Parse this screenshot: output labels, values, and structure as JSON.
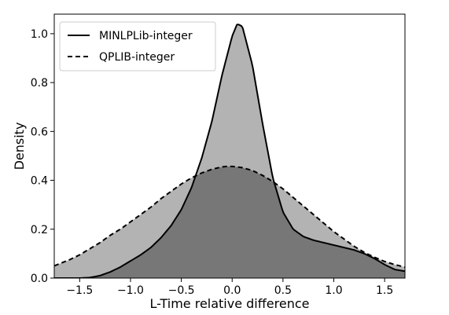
{
  "chart_data": {
    "type": "area",
    "xlabel": "L-Time relative difference",
    "ylabel": "Density",
    "xlim": [
      -1.75,
      1.7
    ],
    "ylim": [
      0.0,
      1.08
    ],
    "xticks": [
      -1.5,
      -1.0,
      -0.5,
      0.0,
      0.5,
      1.0,
      1.5
    ],
    "xtick_labels": [
      "−1.5",
      "−1.0",
      "−0.5",
      "0.0",
      "0.5",
      "1.0",
      "1.5"
    ],
    "yticks": [
      0.0,
      0.2,
      0.4,
      0.6,
      0.8,
      1.0
    ],
    "ytick_labels": [
      "0.0",
      "0.2",
      "0.4",
      "0.6",
      "0.8",
      "1.0"
    ],
    "grid": false,
    "legend": {
      "position": "top-left"
    },
    "series": [
      {
        "name": "MINLPLib-integer",
        "line_style": "solid",
        "x": [
          -1.75,
          -1.6,
          -1.5,
          -1.4,
          -1.3,
          -1.2,
          -1.1,
          -1.0,
          -0.9,
          -0.8,
          -0.7,
          -0.6,
          -0.5,
          -0.4,
          -0.3,
          -0.2,
          -0.1,
          0.0,
          0.05,
          0.1,
          0.2,
          0.3,
          0.4,
          0.5,
          0.6,
          0.7,
          0.8,
          0.9,
          1.0,
          1.1,
          1.2,
          1.3,
          1.4,
          1.5,
          1.6,
          1.7
        ],
        "y": [
          0.0,
          0.0,
          0.0,
          0.002,
          0.01,
          0.025,
          0.045,
          0.07,
          0.095,
          0.125,
          0.165,
          0.215,
          0.28,
          0.37,
          0.49,
          0.64,
          0.83,
          0.99,
          1.04,
          1.03,
          0.87,
          0.63,
          0.41,
          0.27,
          0.2,
          0.17,
          0.155,
          0.145,
          0.135,
          0.125,
          0.115,
          0.1,
          0.08,
          0.055,
          0.035,
          0.028
        ]
      },
      {
        "name": "QPLIB-integer",
        "line_style": "dashed",
        "x": [
          -1.75,
          -1.6,
          -1.5,
          -1.4,
          -1.3,
          -1.2,
          -1.1,
          -1.0,
          -0.9,
          -0.8,
          -0.7,
          -0.6,
          -0.5,
          -0.4,
          -0.3,
          -0.2,
          -0.1,
          -0.05,
          0.0,
          0.1,
          0.2,
          0.3,
          0.4,
          0.5,
          0.6,
          0.7,
          0.8,
          0.9,
          1.0,
          1.1,
          1.2,
          1.3,
          1.4,
          1.5,
          1.6,
          1.7
        ],
        "y": [
          0.05,
          0.075,
          0.095,
          0.12,
          0.145,
          0.175,
          0.2,
          0.23,
          0.26,
          0.29,
          0.325,
          0.355,
          0.385,
          0.41,
          0.43,
          0.445,
          0.455,
          0.457,
          0.457,
          0.452,
          0.44,
          0.42,
          0.395,
          0.365,
          0.33,
          0.295,
          0.26,
          0.225,
          0.19,
          0.16,
          0.13,
          0.105,
          0.085,
          0.068,
          0.055,
          0.045
        ]
      }
    ]
  },
  "colors": {
    "fill_overlap": "#777777",
    "fill_single": "#b3b3b3",
    "line": "#000000"
  }
}
